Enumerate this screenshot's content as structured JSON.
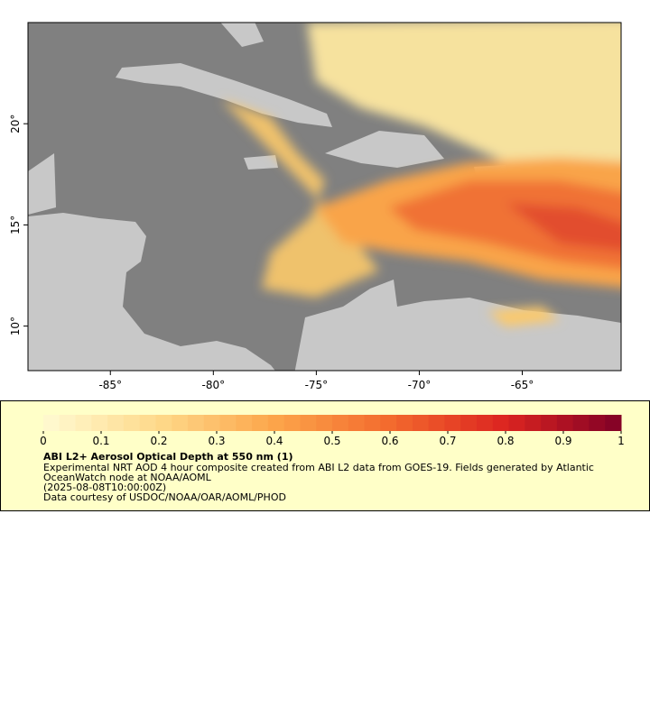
{
  "map": {
    "xlim": [
      -89,
      -60.2
    ],
    "ylim": [
      7.8,
      25
    ],
    "xticks": [
      {
        "value": -85,
        "label": "-85°"
      },
      {
        "value": -80,
        "label": "-80°"
      },
      {
        "value": -75,
        "label": "-75°"
      },
      {
        "value": -70,
        "label": "-70°"
      },
      {
        "value": -65,
        "label": "-65°"
      }
    ],
    "yticks": [
      {
        "value": 10,
        "label": "10°"
      },
      {
        "value": 15,
        "label": "15°"
      },
      {
        "value": 20,
        "label": "20°"
      }
    ],
    "ocean_color": "#808080",
    "land_color": "#c8c8c8"
  },
  "colorbar": {
    "lim": [
      0,
      1
    ],
    "ticks": [
      0,
      0.1,
      0.2,
      0.3,
      0.4,
      0.5,
      0.6,
      0.7,
      0.8,
      0.9,
      1
    ],
    "colors": [
      "#fffad2",
      "#fed98a",
      "#fca54a",
      "#f36a2e",
      "#dc2420",
      "#800026"
    ]
  },
  "legend": {
    "title": "ABI L2+ Aerosol Optical Depth at 550 nm (1)",
    "lines": [
      "Experimental NRT AOD 4 hour composite created from ABI L2 data from GOES-19. Fields generated by Atlantic",
      "OceanWatch node at NOAA/AOML",
      "(2025-08-08T10:00:00Z)",
      "Data courtesy of USDOC/NOAA/OAR/AOML/PHOD"
    ]
  }
}
